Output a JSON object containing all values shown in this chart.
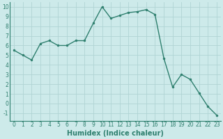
{
  "x": [
    0,
    1,
    2,
    3,
    4,
    5,
    6,
    7,
    8,
    9,
    10,
    11,
    12,
    13,
    14,
    15,
    16,
    17,
    18,
    19,
    20,
    21,
    22,
    23
  ],
  "y": [
    5.5,
    5.0,
    4.5,
    6.2,
    6.5,
    6.0,
    6.0,
    6.5,
    6.5,
    8.3,
    10.0,
    8.8,
    9.1,
    9.4,
    9.5,
    9.7,
    9.2,
    4.7,
    1.7,
    3.0,
    2.5,
    1.1,
    -0.3,
    -1.2
  ],
  "line_color": "#2e7f6e",
  "marker": "o",
  "marker_size": 2,
  "linewidth": 1.0,
  "bg_color": "#cdeaea",
  "grid_color": "#b0d4d4",
  "xlabel": "Humidex (Indice chaleur)",
  "xlabel_fontsize": 7,
  "xlabel_bold": true,
  "ylim": [
    -1.8,
    10.5
  ],
  "xlim": [
    -0.5,
    23.5
  ],
  "yticks": [
    -1,
    0,
    1,
    2,
    3,
    4,
    5,
    6,
    7,
    8,
    9,
    10
  ],
  "xticks": [
    0,
    1,
    2,
    3,
    4,
    5,
    6,
    7,
    8,
    9,
    10,
    11,
    12,
    13,
    14,
    15,
    16,
    17,
    18,
    19,
    20,
    21,
    22,
    23
  ],
  "tick_fontsize": 5.5,
  "tick_color": "#2e7f6e",
  "xlabel_color": "#2e7f6e"
}
